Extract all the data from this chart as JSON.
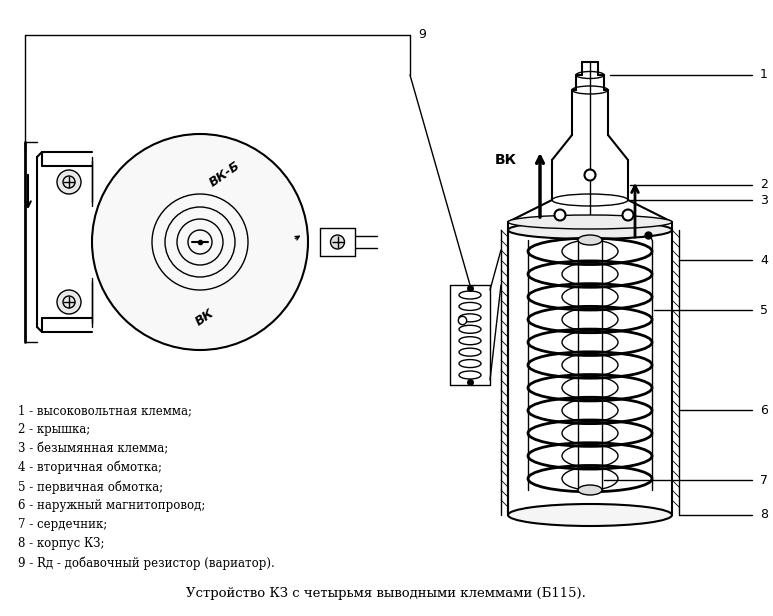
{
  "bg_color": "#ffffff",
  "line_color": "#000000",
  "title": "Устройство КЗ с четырьмя выводными клеммами (Б115).",
  "title_fontsize": 9.5,
  "legend_items": [
    "1 - высоковольтная клемма;",
    "2 - крышка;",
    "3 - безымянная клемма;",
    "4 - вторичная обмотка;",
    "5 - первичная обмотка;",
    "6 - наружный магнитопровод;",
    "7 - сердечник;",
    "8 - корпус КЗ;",
    "9 - Rд - добавочный резистор (вариатор)."
  ],
  "legend_fontsize": 8.5,
  "label_fontsize": 9,
  "vk_b_label": "ВК-Б",
  "vk_label": "ВК",
  "num9_label": "9"
}
